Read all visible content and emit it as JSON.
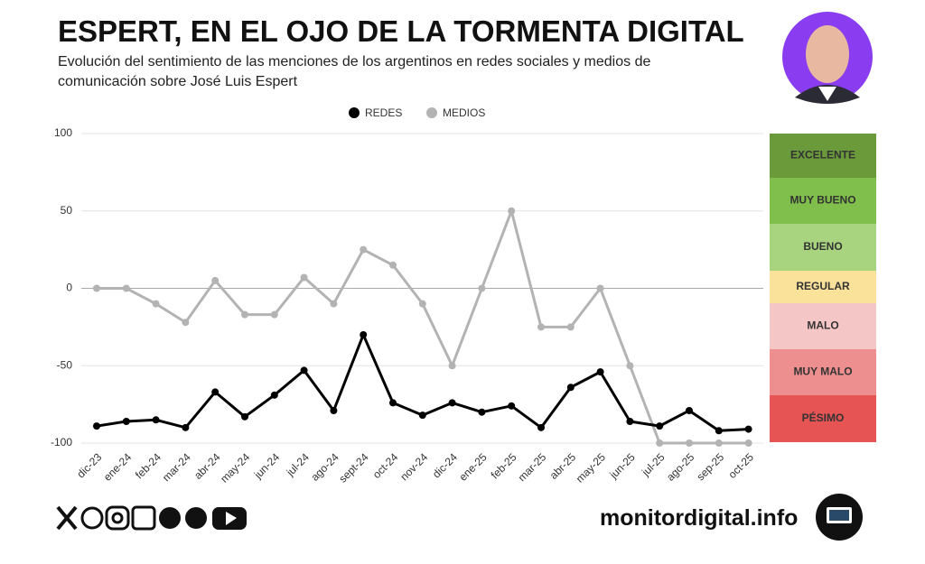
{
  "header": {
    "title": "ESPERT, EN EL OJO DE LA TORMENTA DIGITAL",
    "subtitle_lines": [
      "Evolución del sentimiento de las menciones de los argentinos en redes sociales y medios de",
      "comunicación sobre José Luis Espert"
    ]
  },
  "chart_data": {
    "type": "line",
    "categories": [
      "dic-23",
      "ene-24",
      "feb-24",
      "mar-24",
      "abr-24",
      "may-24",
      "jun-24",
      "jul-24",
      "ago-24",
      "sept-24",
      "oct-24",
      "nov-24",
      "dic-24",
      "ene-25",
      "feb-25",
      "mar-25",
      "abr-25",
      "may-25",
      "jun-25",
      "jul-25",
      "ago-25",
      "sep-25",
      "oct-25"
    ],
    "series": [
      {
        "name": "REDES",
        "color": "#000000",
        "values": [
          -89,
          -86,
          -85,
          -90,
          -67,
          -83,
          -69,
          -53,
          -79,
          -30,
          -74,
          -82,
          -74,
          -80,
          -76,
          -90,
          -64,
          -54,
          -86,
          -89,
          -79,
          -92,
          -91
        ]
      },
      {
        "name": "MEDIOS",
        "color": "#b3b3b3",
        "values": [
          0,
          0,
          -10,
          -22,
          5,
          -17,
          -17,
          7,
          -10,
          25,
          15,
          -10,
          -50,
          0,
          50,
          -25,
          -25,
          0,
          -50,
          -100,
          -100,
          -100,
          -100
        ]
      }
    ],
    "ylim": [
      -100,
      100
    ],
    "yticks": [
      -100,
      -50,
      0,
      50,
      100
    ],
    "grid": true,
    "legend": "top"
  },
  "scale": [
    {
      "label": "EXCELENTE",
      "color": "#6a9a3a"
    },
    {
      "label": "MUY BUENO",
      "color": "#80bf4b"
    },
    {
      "label": "BUENO",
      "color": "#a8d47f"
    },
    {
      "label": "REGULAR",
      "color": "#fbe29b"
    },
    {
      "label": "MALO",
      "color": "#f5c6c6"
    },
    {
      "label": "MUY MALO",
      "color": "#ee8f8f"
    },
    {
      "label": "PÉSIMO",
      "color": "#e65454"
    }
  ],
  "footer": {
    "site": "monitordigital.info"
  }
}
